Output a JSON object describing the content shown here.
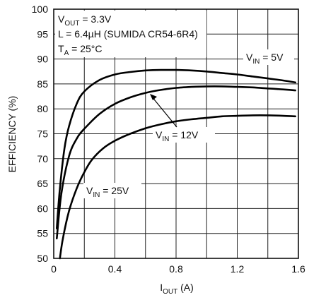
{
  "chart_data": {
    "type": "line",
    "xlabel_main": "I",
    "xlabel_sub": "OUT",
    "xlabel_unit": " (A)",
    "ylabel": "EFFICIENCY (%)",
    "xlim": [
      0,
      1.6
    ],
    "ylim": [
      50,
      100
    ],
    "x_ticks": [
      0,
      0.2,
      0.4,
      0.6,
      0.8,
      1.0,
      1.2,
      1.4,
      1.6
    ],
    "x_tick_labels": [
      "0",
      "",
      "0.4",
      "",
      "0.8",
      "",
      "1.2",
      "",
      "1.6"
    ],
    "y_ticks": [
      50,
      55,
      60,
      65,
      70,
      75,
      80,
      85,
      90,
      95,
      100
    ],
    "y_tick_labels": [
      "50",
      "55",
      "60",
      "65",
      "70",
      "75",
      "80",
      "85",
      "90",
      "95",
      "100"
    ],
    "grid": true,
    "conditions": [
      {
        "main": "V",
        "sub": "OUT",
        "rest": " = 3.3V"
      },
      {
        "main": "L = 6.4µH (SUMIDA CR54-6R4)",
        "sub": "",
        "rest": ""
      },
      {
        "main": "T",
        "sub": "A",
        "rest": " = 25°C"
      }
    ],
    "series": [
      {
        "name_main": "V",
        "name_sub": "IN",
        "name_rest": " = 5V",
        "x": [
          0.02,
          0.04,
          0.07,
          0.1,
          0.15,
          0.2,
          0.3,
          0.4,
          0.5,
          0.6,
          0.7,
          0.8,
          0.9,
          1.0,
          1.1,
          1.2,
          1.3,
          1.4,
          1.5,
          1.58
        ],
        "y": [
          56,
          64,
          72,
          76.5,
          81,
          83.5,
          85.8,
          86.9,
          87.4,
          87.7,
          87.8,
          87.8,
          87.7,
          87.5,
          87.2,
          86.9,
          86.5,
          86.1,
          85.7,
          85.3
        ]
      },
      {
        "name_main": "V",
        "name_sub": "IN",
        "name_rest": " = 12V",
        "x": [
          0.02,
          0.05,
          0.1,
          0.15,
          0.2,
          0.3,
          0.4,
          0.5,
          0.6,
          0.7,
          0.8,
          0.9,
          1.0,
          1.1,
          1.2,
          1.3,
          1.4,
          1.5,
          1.58
        ],
        "y": [
          54,
          63,
          70.5,
          74,
          76,
          79,
          81,
          82.3,
          83.2,
          83.8,
          84.2,
          84.4,
          84.5,
          84.5,
          84.4,
          84.3,
          84.1,
          83.9,
          83.7
        ]
      },
      {
        "name_main": "V",
        "name_sub": "IN",
        "name_rest": " = 25V",
        "x": [
          0.04,
          0.06,
          0.1,
          0.15,
          0.2,
          0.25,
          0.32,
          0.4,
          0.5,
          0.6,
          0.7,
          0.8,
          0.9,
          1.0,
          1.1,
          1.2,
          1.3,
          1.4,
          1.5,
          1.58
        ],
        "y": [
          50,
          54,
          59.5,
          64,
          67.3,
          69.8,
          72,
          73.6,
          75,
          76.1,
          76.9,
          77.5,
          77.9,
          78.2,
          78.5,
          78.6,
          78.7,
          78.7,
          78.6,
          78.5
        ]
      }
    ]
  }
}
